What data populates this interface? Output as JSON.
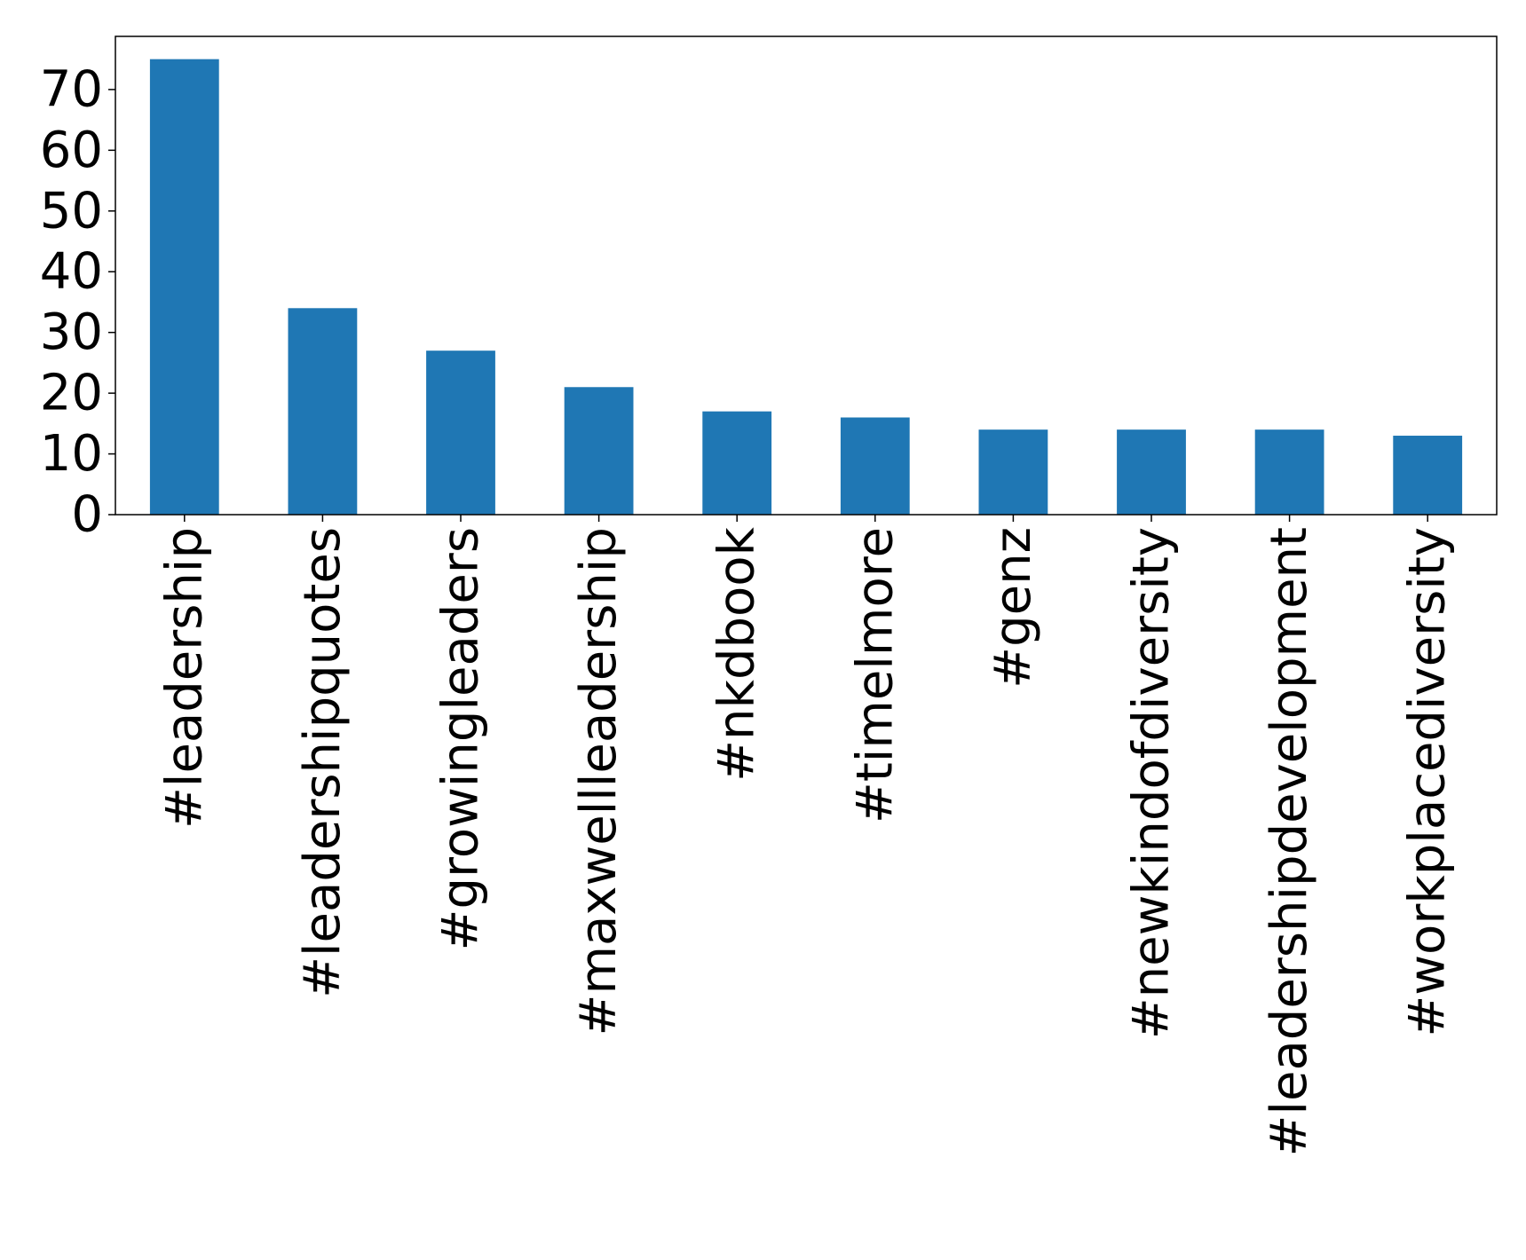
{
  "chart_data": {
    "type": "bar",
    "title": "",
    "xlabel": "",
    "ylabel": "",
    "categories": [
      "#leadership",
      "#leadershipquotes",
      "#growingleaders",
      "#maxwellleadership",
      "#nkdbook",
      "#timelmore",
      "#genz",
      "#newkindofdiversity",
      "#leadershipdevelopment",
      "#workplacediversity"
    ],
    "values": [
      75,
      34,
      27,
      21,
      17,
      16,
      14,
      14,
      14,
      13
    ],
    "ylim": [
      0,
      78.75
    ],
    "yticks": [
      0,
      10,
      20,
      30,
      40,
      50,
      60,
      70
    ],
    "bar_color": "#1f77b4",
    "grid": false,
    "legend": "none"
  }
}
